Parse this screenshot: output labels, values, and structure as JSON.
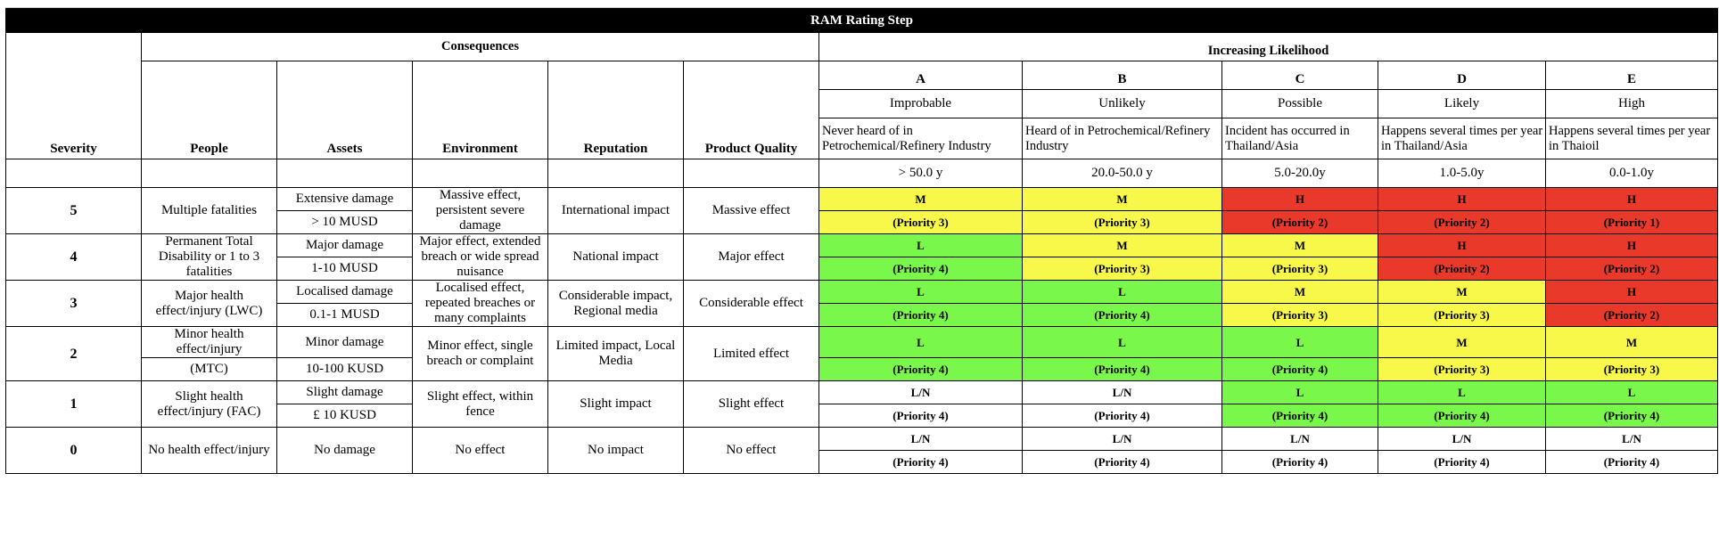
{
  "title": "RAM Rating Step",
  "headers": {
    "consequences": "Consequences",
    "likelihood": "Increasing Likelihood",
    "severity": "Severity",
    "people": "People",
    "assets": "Assets",
    "environment": "Environment",
    "reputation": "Reputation",
    "product_quality": "Product Quality"
  },
  "likelihood_cols": [
    {
      "letter": "A",
      "name": "Improbable",
      "desc": "Never heard of in Petrochemical/Refinery Industry",
      "freq": "> 50.0 y"
    },
    {
      "letter": "B",
      "name": "Unlikely",
      "desc": "Heard of in Petrochemical/Refinery Industry",
      "freq": "20.0-50.0 y"
    },
    {
      "letter": "C",
      "name": "Possible",
      "desc": "Incident has occurred in Thailand/Asia",
      "freq": "5.0-20.0y"
    },
    {
      "letter": "D",
      "name": "Likely",
      "desc": "Happens several times per year in Thailand/Asia",
      "freq": "1.0-5.0y"
    },
    {
      "letter": "E",
      "name": "High",
      "desc": "Happens several times per year in Thaioil",
      "freq": "0.0-1.0y"
    }
  ],
  "rows": [
    {
      "sev": "5",
      "people1": "Multiple fatalities",
      "people2": "",
      "asset1": "Extensive damage",
      "asset2": "> 10 MUSD",
      "env": "Massive effect, persistent severe damage",
      "rep": "International impact",
      "pq": "Massive effect",
      "cells": [
        [
          "M",
          "(Priority 3)",
          "#f8f84a"
        ],
        [
          "M",
          "(Priority 3)",
          "#f8f84a"
        ],
        [
          "H",
          "(Priority 2)",
          "#e8392a"
        ],
        [
          "H",
          "(Priority 2)",
          "#e8392a"
        ],
        [
          "H",
          "(Priority 1)",
          "#e8392a"
        ]
      ]
    },
    {
      "sev": "4",
      "people1": "Permanent Total Disability  or 1 to 3 fatalities",
      "people2": "",
      "asset1": "Major damage",
      "asset2": "1-10 MUSD",
      "env": "Major effect, extended breach or wide spread nuisance",
      "rep": "National impact",
      "pq": "Major effect",
      "cells": [
        [
          "L",
          "(Priority 4)",
          "#79f74a"
        ],
        [
          "M",
          "(Priority 3)",
          "#f8f84a"
        ],
        [
          "M",
          "(Priority 3)",
          "#f8f84a"
        ],
        [
          "H",
          "(Priority 2)",
          "#e8392a"
        ],
        [
          "H",
          "(Priority 2)",
          "#e8392a"
        ]
      ]
    },
    {
      "sev": "3",
      "people1": "Major health effect/injury (LWC)",
      "people2": "",
      "asset1": "Localised damage",
      "asset2": "0.1-1 MUSD",
      "env": "Localised effect, repeated breaches or many complaints",
      "rep": "Considerable impact, Regional media",
      "pq": "Considerable effect",
      "cells": [
        [
          "L",
          "(Priority 4)",
          "#79f74a"
        ],
        [
          "L",
          "(Priority 4)",
          "#79f74a"
        ],
        [
          "M",
          "(Priority 3)",
          "#f8f84a"
        ],
        [
          "M",
          "(Priority 3)",
          "#f8f84a"
        ],
        [
          "H",
          "(Priority 2)",
          "#e8392a"
        ]
      ]
    },
    {
      "sev": "2",
      "people1": "Minor health effect/injury",
      "people2": "(MTC)",
      "asset1": "Minor damage",
      "asset2": "10-100 KUSD",
      "env": "Minor effect, single breach or complaint",
      "rep": "Limited impact, Local Media",
      "pq": "Limited effect",
      "cells": [
        [
          "L",
          "(Priority 4)",
          "#79f74a"
        ],
        [
          "L",
          "(Priority 4)",
          "#79f74a"
        ],
        [
          "L",
          "(Priority 4)",
          "#79f74a"
        ],
        [
          "M",
          "(Priority 3)",
          "#f8f84a"
        ],
        [
          "M",
          "(Priority 3)",
          "#f8f84a"
        ]
      ]
    },
    {
      "sev": "1",
      "people1": "Slight health effect/injury (FAC)",
      "people2": "",
      "asset1": "Slight damage",
      "asset2": "£ 10 KUSD",
      "env": "Slight effect, within fence",
      "rep": "Slight  impact",
      "pq": "Slight effect",
      "cells": [
        [
          "L/N",
          "(Priority 4)",
          "#ffffff"
        ],
        [
          "L/N",
          "(Priority 4)",
          "#ffffff"
        ],
        [
          "L",
          "(Priority 4)",
          "#79f74a"
        ],
        [
          "L",
          "(Priority 4)",
          "#79f74a"
        ],
        [
          "L",
          "(Priority 4)",
          "#79f74a"
        ]
      ]
    },
    {
      "sev": "0",
      "people1": "No health effect/injury",
      "people2": "",
      "asset1": "No damage",
      "asset2": "",
      "env": "No effect",
      "rep": "No impact",
      "pq": "No effect",
      "cells": [
        [
          "L/N",
          "(Priority 4)",
          "#ffffff"
        ],
        [
          "L/N",
          "(Priority 4)",
          "#ffffff"
        ],
        [
          "L/N",
          "(Priority 4)",
          "#ffffff"
        ],
        [
          "L/N",
          "(Priority 4)",
          "#ffffff"
        ],
        [
          "L/N",
          "(Priority 4)",
          "#ffffff"
        ]
      ]
    }
  ]
}
